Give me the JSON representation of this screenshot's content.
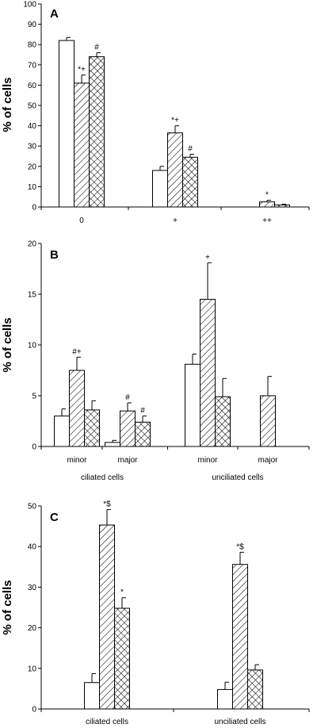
{
  "chart_data": [
    {
      "type": "bar",
      "panel_label": "A",
      "ylabel": "% of cells",
      "ylim": [
        0,
        100
      ],
      "yticks": [
        0,
        10,
        20,
        30,
        40,
        50,
        60,
        70,
        80,
        90,
        100
      ],
      "categories": [
        "0",
        "+",
        "++"
      ],
      "groups": [],
      "series_patterns": [
        "open",
        "hatched",
        "crosshatched"
      ],
      "values": [
        [
          82,
          61,
          74
        ],
        [
          18,
          36.5,
          24.5
        ],
        [
          0,
          2.5,
          1
        ]
      ],
      "errors": [
        [
          1.5,
          4,
          2
        ],
        [
          2,
          3.5,
          1.5
        ],
        [
          0,
          0.8,
          0.4
        ]
      ],
      "significance": [
        [
          "",
          "*+",
          "#"
        ],
        [
          "",
          "*+",
          "#"
        ],
        [
          "",
          "*",
          ""
        ]
      ]
    },
    {
      "type": "bar",
      "panel_label": "B",
      "ylabel": "% of cells",
      "ylim": [
        0,
        20
      ],
      "yticks": [
        0,
        5,
        10,
        15,
        20
      ],
      "categories": [
        "minor",
        "major",
        "minor",
        "major"
      ],
      "groups": [
        {
          "label": "ciliated cells",
          "span": [
            0,
            1
          ]
        },
        {
          "label": "unciliated cells",
          "span": [
            2,
            3
          ]
        }
      ],
      "series_patterns": [
        "open",
        "hatched",
        "crosshatched"
      ],
      "values": [
        [
          3,
          7.5,
          3.6
        ],
        [
          0.4,
          3.5,
          2.4
        ],
        [
          8.1,
          14.5,
          4.9
        ],
        [
          0,
          5,
          0
        ]
      ],
      "errors": [
        [
          0.7,
          1.3,
          0.9
        ],
        [
          0.2,
          0.8,
          0.6
        ],
        [
          1,
          3.6,
          1.8
        ],
        [
          0,
          1.9,
          0
        ]
      ],
      "significance": [
        [
          "",
          "#+",
          ""
        ],
        [
          "",
          "#",
          "#"
        ],
        [
          "",
          "+",
          ""
        ],
        [
          "",
          "",
          ""
        ]
      ]
    },
    {
      "type": "bar",
      "panel_label": "C",
      "ylabel": "% of cells",
      "ylim": [
        0,
        50
      ],
      "yticks": [
        0,
        10,
        20,
        30,
        40,
        50
      ],
      "categories": [
        "ciliated cells",
        "unciliated cells"
      ],
      "groups": [],
      "series_patterns": [
        "open",
        "hatched",
        "crosshatched"
      ],
      "values": [
        [
          6.5,
          45.3,
          24.8
        ],
        [
          4.8,
          35.6,
          9.6
        ]
      ],
      "errors": [
        [
          2.2,
          3.8,
          2.6
        ],
        [
          1.8,
          3,
          1.3
        ]
      ],
      "significance": [
        [
          "",
          "*$",
          "*"
        ],
        [
          "",
          "*$",
          ""
        ]
      ]
    }
  ]
}
